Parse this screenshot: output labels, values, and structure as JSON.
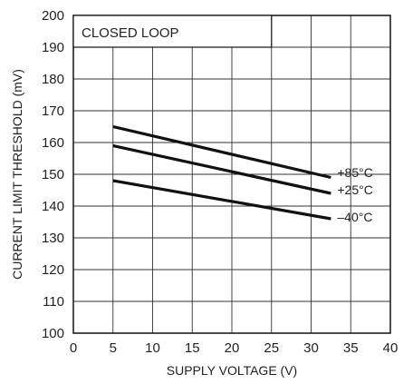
{
  "chart_data": {
    "type": "line",
    "xlabel": "SUPPLY VOLTAGE (V)",
    "ylabel": "CURRENT LIMIT THRESHOLD (mV)",
    "xlim": [
      0,
      40
    ],
    "ylim": [
      100,
      200
    ],
    "xticks": [
      0,
      5,
      10,
      15,
      20,
      25,
      30,
      35,
      40
    ],
    "yticks": [
      100,
      110,
      120,
      130,
      140,
      150,
      160,
      170,
      180,
      190,
      200
    ],
    "grid": true,
    "annotation": "CLOSED LOOP",
    "series": [
      {
        "name": "+85°C",
        "x": [
          5,
          32.5
        ],
        "y": [
          165,
          149
        ]
      },
      {
        "name": "+25°C",
        "x": [
          5,
          32.5
        ],
        "y": [
          159,
          144
        ]
      },
      {
        "name": "–40°C",
        "x": [
          5,
          32.5
        ],
        "y": [
          148,
          136
        ]
      }
    ]
  }
}
